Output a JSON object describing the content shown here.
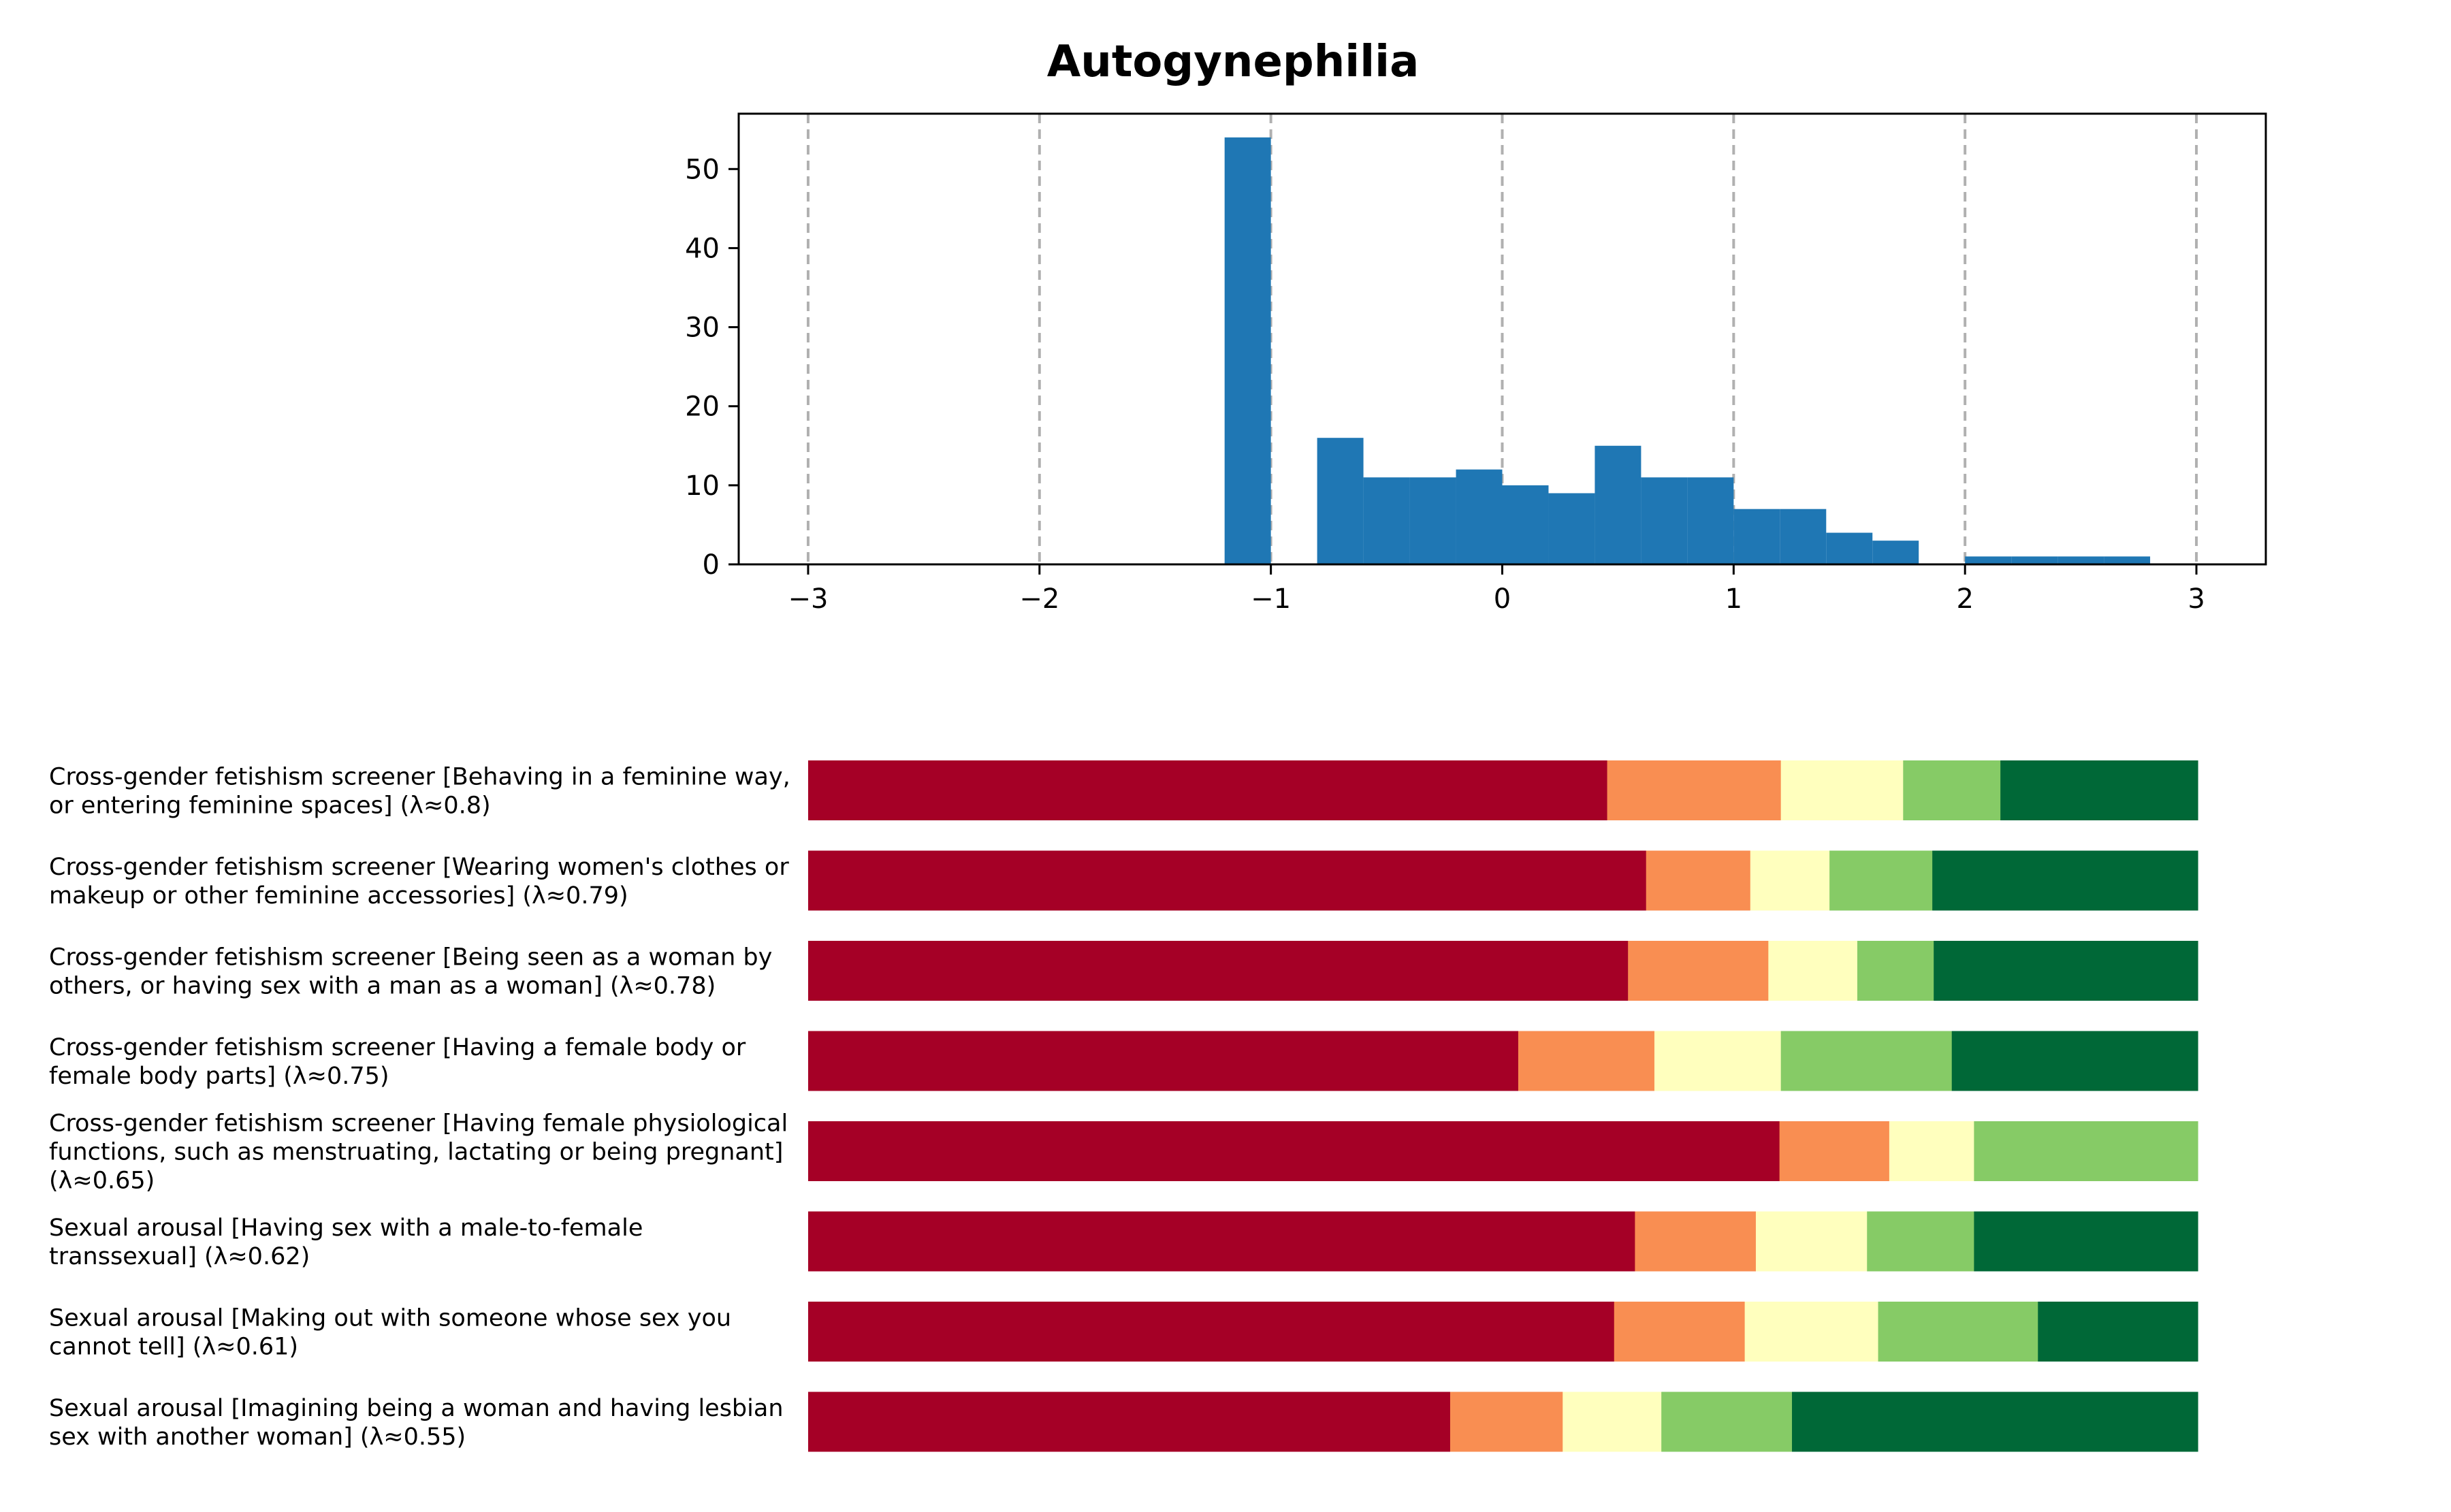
{
  "chart_data": [
    {
      "type": "bar",
      "subtype": "histogram",
      "title": "Autogynephilia",
      "xlabel": "",
      "ylabel": "",
      "xlim": [
        -3.3,
        3.3
      ],
      "ylim": [
        0,
        57
      ],
      "x_ticks": [
        -3,
        -2,
        -1,
        0,
        1,
        2,
        3
      ],
      "x_tick_labels": [
        "−3",
        "−2",
        "−1",
        "0",
        "1",
        "2",
        "3"
      ],
      "y_ticks": [
        0,
        10,
        20,
        30,
        40,
        50
      ],
      "y_tick_labels": [
        "0",
        "10",
        "20",
        "30",
        "40",
        "50"
      ],
      "grid": "x-dashed",
      "bar_color": "#1f77b4",
      "bins": [
        {
          "x0": -1.2,
          "x1": -1.0,
          "count": 54
        },
        {
          "x0": -0.8,
          "x1": -0.6,
          "count": 16
        },
        {
          "x0": -0.6,
          "x1": -0.4,
          "count": 11
        },
        {
          "x0": -0.4,
          "x1": -0.2,
          "count": 11
        },
        {
          "x0": -0.2,
          "x1": 0.0,
          "count": 12
        },
        {
          "x0": 0.0,
          "x1": 0.2,
          "count": 10
        },
        {
          "x0": 0.2,
          "x1": 0.4,
          "count": 9
        },
        {
          "x0": 0.4,
          "x1": 0.6,
          "count": 15
        },
        {
          "x0": 0.6,
          "x1": 0.8,
          "count": 11
        },
        {
          "x0": 0.8,
          "x1": 1.0,
          "count": 11
        },
        {
          "x0": 1.0,
          "x1": 1.2,
          "count": 7
        },
        {
          "x0": 1.2,
          "x1": 1.4,
          "count": 7
        },
        {
          "x0": 1.4,
          "x1": 1.6,
          "count": 4
        },
        {
          "x0": 1.6,
          "x1": 1.8,
          "count": 3
        },
        {
          "x0": 2.0,
          "x1": 2.2,
          "count": 1
        },
        {
          "x0": 2.2,
          "x1": 2.4,
          "count": 1
        },
        {
          "x0": 2.4,
          "x1": 2.6,
          "count": 1
        },
        {
          "x0": 2.6,
          "x1": 2.8,
          "count": 1
        }
      ]
    },
    {
      "type": "bar",
      "subtype": "stacked-horizontal-100",
      "colors": [
        "#a50026",
        "#f98e52",
        "#ffffbe",
        "#86cb66",
        "#006837"
      ],
      "items": [
        {
          "label": "Cross-gender fetishism screener [Behaving in a feminine way, or entering feminine spaces] (λ≈0.8)",
          "shares": [
            0.575,
            0.125,
            0.088,
            0.07,
            0.142
          ]
        },
        {
          "label": "Cross-gender fetishism screener [Wearing women's clothes or makeup or other feminine accessories] (λ≈0.79)",
          "shares": [
            0.603,
            0.075,
            0.057,
            0.074,
            0.191
          ]
        },
        {
          "label": "Cross-gender fetishism screener [Being seen as a woman by others, or having sex with a man as a woman] (λ≈0.78)",
          "shares": [
            0.59,
            0.101,
            0.064,
            0.055,
            0.19
          ]
        },
        {
          "label": "Cross-gender fetishism screener [Having a female body or female body parts] (λ≈0.75)",
          "shares": [
            0.511,
            0.098,
            0.091,
            0.123,
            0.177
          ]
        },
        {
          "label": "Cross-gender fetishism screener [Having female physiological functions, such as menstruating, lactating or being pregnant] (λ≈0.65)",
          "shares": [
            0.699,
            0.079,
            0.061,
            0.161,
            0.0
          ]
        },
        {
          "label": "Sexual arousal [Having sex with a male-to-female transsexual] (λ≈0.62)",
          "shares": [
            0.595,
            0.087,
            0.08,
            0.077,
            0.161
          ]
        },
        {
          "label": "Sexual arousal [Making out with someone whose sex you cannot tell] (λ≈0.61)",
          "shares": [
            0.58,
            0.094,
            0.096,
            0.115,
            0.115
          ]
        },
        {
          "label": "Sexual arousal [Imagining being a woman and having lesbian sex with another woman] (λ≈0.55)",
          "shares": [
            0.462,
            0.081,
            0.071,
            0.094,
            0.292
          ]
        }
      ]
    }
  ]
}
